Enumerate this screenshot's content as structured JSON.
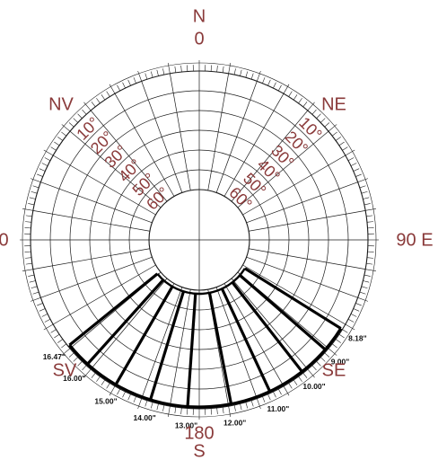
{
  "cardinals": {
    "north_letter": "N",
    "north_degree": "0",
    "south_degree": "180",
    "south_letter": "S",
    "east_label": "90 E",
    "west_label": "0",
    "nw": "NV",
    "ne": "NE",
    "sw": "SV",
    "se": "SE"
  },
  "altitude_labels": [
    "10°",
    "20°",
    "30°",
    "40°",
    "50°",
    "60°"
  ],
  "sun_path_hours": [
    {
      "time": "8.18\"",
      "azimuth": 122
    },
    {
      "time": "9.00\"",
      "azimuth": 131
    },
    {
      "time": "10.00\"",
      "azimuth": 142
    },
    {
      "time": "11.00\"",
      "azimuth": 155
    },
    {
      "time": "12.00\"",
      "azimuth": 169
    },
    {
      "time": "13.00\"",
      "azimuth": 184
    },
    {
      "time": "14.00\"",
      "azimuth": 197
    },
    {
      "time": "15.00\"",
      "azimuth": 210
    },
    {
      "time": "16.00\"",
      "azimuth": 222
    },
    {
      "time": "16.47\"",
      "azimuth": 231
    }
  ],
  "colors": {
    "label": "#8a3a3a",
    "grid": "#1a1a1a",
    "sun_path": "#000000"
  }
}
